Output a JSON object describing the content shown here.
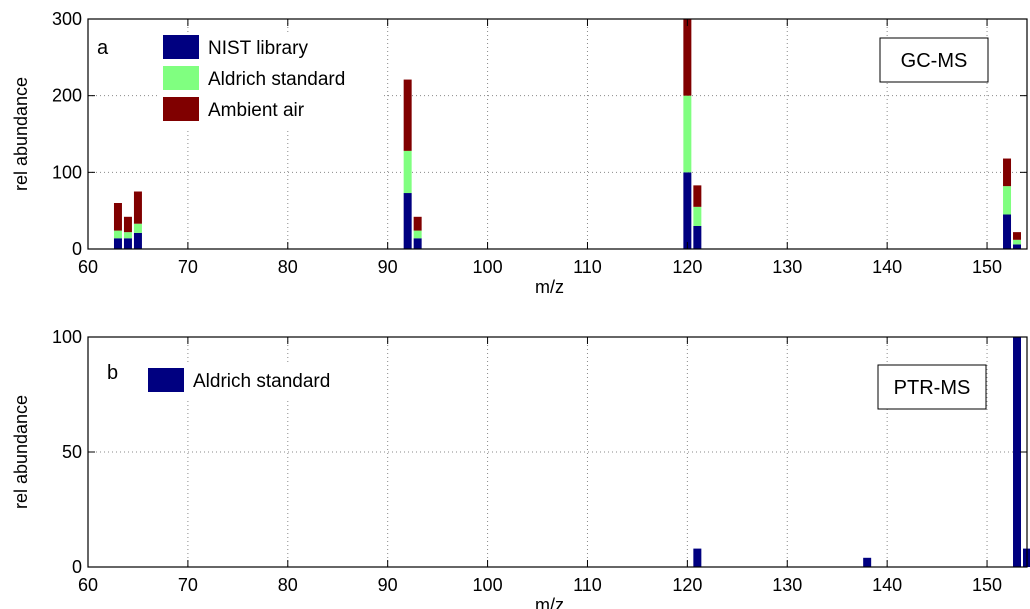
{
  "chart_data": [
    {
      "type": "bar",
      "stacked": true,
      "panel_label": "a",
      "instrument": "GC-MS",
      "xlabel": "m/z",
      "ylabel": "rel abundance",
      "xlim": [
        60,
        154
      ],
      "ylim": [
        0,
        300
      ],
      "xticks": [
        60,
        70,
        80,
        90,
        100,
        110,
        120,
        130,
        140,
        150
      ],
      "yticks": [
        0,
        100,
        200,
        300
      ],
      "grid": true,
      "legend_position": "top-left",
      "x": [
        63,
        64,
        65,
        92,
        93,
        120,
        121,
        152,
        153
      ],
      "series": [
        {
          "name": "NIST library",
          "color": "#000080",
          "values": [
            14,
            14,
            21,
            73,
            14,
            100,
            30,
            45,
            6
          ]
        },
        {
          "name": "Aldrich standard",
          "color": "#80ff80",
          "values": [
            10,
            8,
            12,
            55,
            10,
            100,
            25,
            37,
            6
          ]
        },
        {
          "name": "Ambient air",
          "color": "#800000",
          "values": [
            36,
            20,
            42,
            93,
            18,
            100,
            28,
            36,
            10
          ]
        }
      ]
    },
    {
      "type": "bar",
      "panel_label": "b",
      "instrument": "PTR-MS",
      "xlabel": "m/z",
      "ylabel": "rel abundance",
      "xlim": [
        60,
        154
      ],
      "ylim": [
        0,
        100
      ],
      "xticks": [
        60,
        70,
        80,
        90,
        100,
        110,
        120,
        130,
        140,
        150
      ],
      "yticks": [
        0,
        50,
        100
      ],
      "grid": true,
      "legend_position": "top-left",
      "x": [
        121,
        138,
        153,
        154
      ],
      "series": [
        {
          "name": "Aldrich standard",
          "color": "#000080",
          "values": [
            8,
            4,
            100,
            8
          ]
        }
      ]
    }
  ]
}
